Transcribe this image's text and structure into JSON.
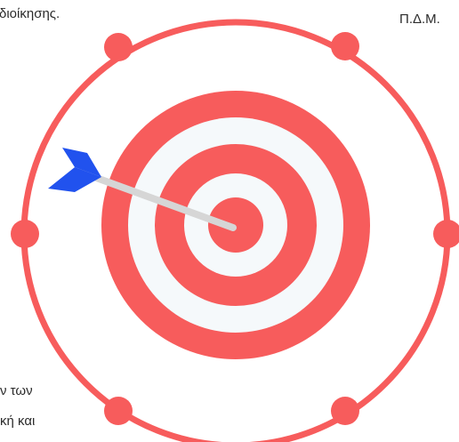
{
  "text_fragments": {
    "top_left": "διοίκησης.",
    "top_right": "Π.Δ.Μ.",
    "bottom_line_1": "ν των",
    "bottom_line_2": "κή και"
  },
  "colors": {
    "ring_red": "#f75c5c",
    "ring_white": "#f5f9fb",
    "arrow_shaft": "#d6d6d6",
    "arrow_fletching": "#2152ee"
  },
  "icons": {
    "center": "bullseye-target-icon",
    "arrow": "dart-arrow-icon"
  }
}
